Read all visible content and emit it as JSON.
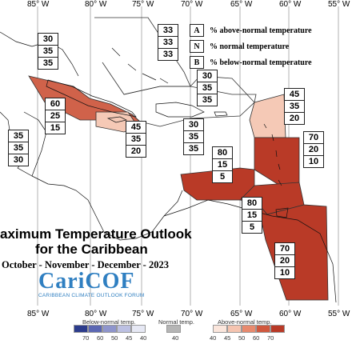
{
  "longitudes": {
    "top": [
      "85° W",
      "80° W",
      "75° W",
      "70° W",
      "65° W",
      "60° W",
      "55° W"
    ],
    "bottom": [
      "85° W",
      "80° W",
      "75° W",
      "70° W",
      "65° W",
      "60° W",
      "55° W"
    ]
  },
  "legend_key": [
    {
      "letter": "A",
      "text": "% above-normal temperature"
    },
    {
      "letter": "N",
      "text": "% normal temperature"
    },
    {
      "letter": "B",
      "text": "% below-normal temperature"
    }
  ],
  "regions": [
    {
      "id": "bahamas",
      "above": "33",
      "normal": "33",
      "below": "33",
      "color": "#ffffff"
    },
    {
      "id": "gulf-mexico",
      "above": "30",
      "normal": "35",
      "below": "35",
      "color": "#ffffff"
    },
    {
      "id": "cuba",
      "above": "60",
      "normal": "25",
      "below": "15",
      "color": "#d0624a"
    },
    {
      "id": "belize-yucatan",
      "above": "35",
      "normal": "35",
      "below": "30",
      "color": "#ffffff"
    },
    {
      "id": "jamaica-cayman",
      "above": "45",
      "normal": "35",
      "below": "20",
      "color": "#f5c9b6"
    },
    {
      "id": "hispaniola",
      "above": "30",
      "normal": "35",
      "below": "35",
      "color": "#ffffff"
    },
    {
      "id": "puerto-rico-atlantic",
      "above": "30",
      "normal": "35",
      "below": "35",
      "color": "#ffffff"
    },
    {
      "id": "leeward-islands",
      "above": "45",
      "normal": "35",
      "below": "20",
      "color": "#f5c9b6"
    },
    {
      "id": "windward-islands",
      "above": "70",
      "normal": "20",
      "below": "10",
      "color": "#b93a27"
    },
    {
      "id": "abc-islands",
      "above": "80",
      "normal": "15",
      "below": "5",
      "color": "#b93a27"
    },
    {
      "id": "trinidad-venezuela",
      "above": "80",
      "normal": "15",
      "below": "5",
      "color": "#b93a27"
    },
    {
      "id": "guianas",
      "above": "70",
      "normal": "20",
      "below": "10",
      "color": "#b93a27"
    }
  ],
  "title": {
    "line1": "aximum Temperature Outlook",
    "line2": "for the Caribbean",
    "line3": "October - November - December - 2023"
  },
  "logo": {
    "name": "CariCOF",
    "subtitle": "CARIBBEAN CLIMATE OUTLOOK FORUM"
  },
  "colorbar": {
    "below_label": "Below-normal temp.",
    "normal_label": "Normal temp.",
    "above_label": "Above-normal temp.",
    "below_ticks": [
      "70",
      "60",
      "50",
      "45",
      "40"
    ],
    "normal_ticks": [
      "40"
    ],
    "above_ticks": [
      "40",
      "45",
      "50",
      "60",
      "70"
    ],
    "below_colors": [
      "#2c3c8c",
      "#5b67b3",
      "#8e95cc",
      "#bcc0e2",
      "#e6e8f4"
    ],
    "normal_color": "#b5b5b5",
    "above_colors": [
      "#fbe6dc",
      "#f5c4b0",
      "#e88a6e",
      "#d0583e",
      "#b93a27"
    ]
  }
}
